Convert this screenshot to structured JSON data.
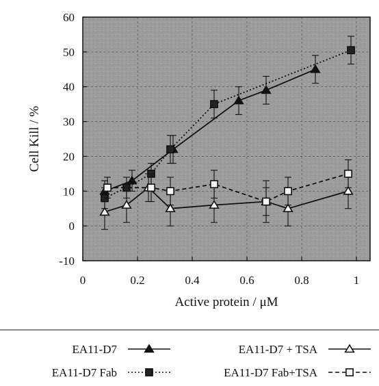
{
  "chart_data": {
    "type": "line",
    "xlabel": "Active protein  / μM",
    "ylabel": "Cell Kill  / %",
    "xlim": [
      0,
      1.05
    ],
    "ylim": [
      -10,
      60
    ],
    "x_ticks": [
      0,
      0.2,
      0.4,
      0.6,
      0.8,
      1
    ],
    "x_tick_labels": [
      "0",
      "0.2",
      "0.4",
      "0.6",
      "0.8",
      "1"
    ],
    "y_ticks": [
      -10,
      0,
      10,
      20,
      30,
      40,
      50,
      60
    ],
    "y_tick_labels": [
      "-10",
      "0",
      "10",
      "20",
      "30",
      "40",
      "50",
      "60"
    ],
    "grid": true,
    "plot_background": "#9a9a9a",
    "legend_placement": "below",
    "series": [
      {
        "name": "EA11-D7",
        "line_style": "solid",
        "marker": "filled-triangle",
        "color": "#111111",
        "x": [
          0.08,
          0.18,
          0.33,
          0.57,
          0.67,
          0.85
        ],
        "y": [
          10,
          13,
          22,
          36,
          39,
          45
        ],
        "err": [
          3,
          3,
          4,
          4,
          4,
          4
        ]
      },
      {
        "name": "EA11-D7 + TSA",
        "line_style": "solid",
        "marker": "open-triangle",
        "color": "#111111",
        "x": [
          0.08,
          0.16,
          0.24,
          0.32,
          0.48,
          0.67,
          0.75,
          0.97
        ],
        "y": [
          4,
          6,
          11,
          5,
          6,
          7,
          5,
          10
        ],
        "err": [
          5,
          5,
          4,
          5,
          5,
          6,
          5,
          5
        ]
      },
      {
        "name": "EA11-D7 Fab",
        "line_style": "dotted",
        "marker": "filled-square",
        "color": "#111111",
        "x": [
          0.08,
          0.16,
          0.25,
          0.32,
          0.48,
          0.98
        ],
        "y": [
          8,
          11,
          15,
          22,
          35,
          50.5
        ],
        "err": [
          3,
          3,
          3,
          4,
          4,
          4
        ]
      },
      {
        "name": "EA11-D7 Fab+TSA",
        "line_style": "dashed",
        "marker": "open-square",
        "color": "#111111",
        "x": [
          0.09,
          0.25,
          0.32,
          0.48,
          0.67,
          0.75,
          0.97
        ],
        "y": [
          11,
          11,
          10,
          12,
          7,
          10,
          15
        ],
        "err": [
          3,
          4,
          4,
          4,
          4,
          4,
          4
        ]
      }
    ],
    "legend": [
      {
        "label": "EA11-D7",
        "series": 0
      },
      {
        "label": "EA11-D7 + TSA",
        "series": 1
      },
      {
        "label": "EA11-D7 Fab",
        "series": 2
      },
      {
        "label": "EA11-D7 Fab+TSA",
        "series": 3
      }
    ]
  }
}
